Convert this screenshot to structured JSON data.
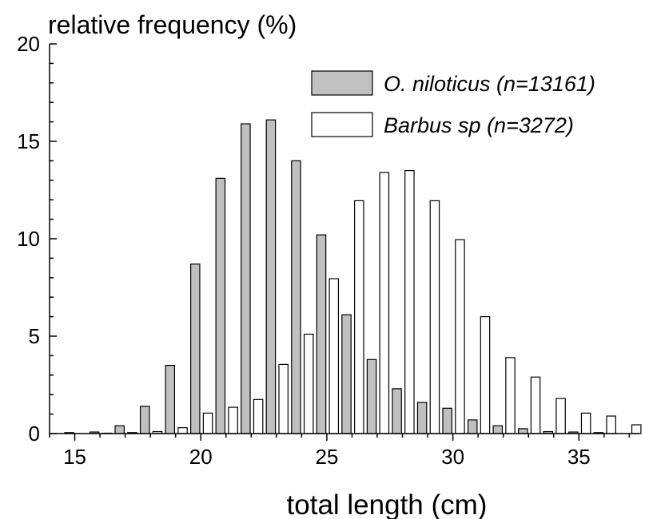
{
  "chart_data": {
    "type": "bar",
    "title": "relative frequency (%)",
    "xlabel": "total length (cm)",
    "ylabel": "",
    "xlim": [
      14,
      37.4
    ],
    "ylim": [
      0,
      20
    ],
    "x_ticks": [
      15,
      20,
      25,
      30,
      35
    ],
    "y_ticks": [
      0,
      5,
      10,
      15,
      20
    ],
    "grid": false,
    "legend_position": "top-right",
    "x": [
      15,
      16,
      17,
      18,
      19,
      20,
      21,
      22,
      23,
      24,
      25,
      26,
      27,
      28,
      29,
      30,
      31,
      32,
      33,
      34,
      35,
      36,
      37
    ],
    "series": [
      {
        "name": "O. niloticus (n=13161)",
        "color": "#c0c0c0",
        "values": [
          0.05,
          0.08,
          0.4,
          1.4,
          3.5,
          8.7,
          13.1,
          15.9,
          16.1,
          14.0,
          10.2,
          6.1,
          3.8,
          2.3,
          1.6,
          1.3,
          0.7,
          0.4,
          0.25,
          0.1,
          0.08,
          0.05,
          0
        ]
      },
      {
        "name": "Barbus sp (n=3272)",
        "color": "#ffffff",
        "values": [
          0,
          0.02,
          0.05,
          0.1,
          0.3,
          1.05,
          1.35,
          1.75,
          3.55,
          5.1,
          7.95,
          11.95,
          13.4,
          13.5,
          11.95,
          9.95,
          6.0,
          3.9,
          2.9,
          1.8,
          1.05,
          0.9,
          0.45
        ]
      }
    ]
  }
}
